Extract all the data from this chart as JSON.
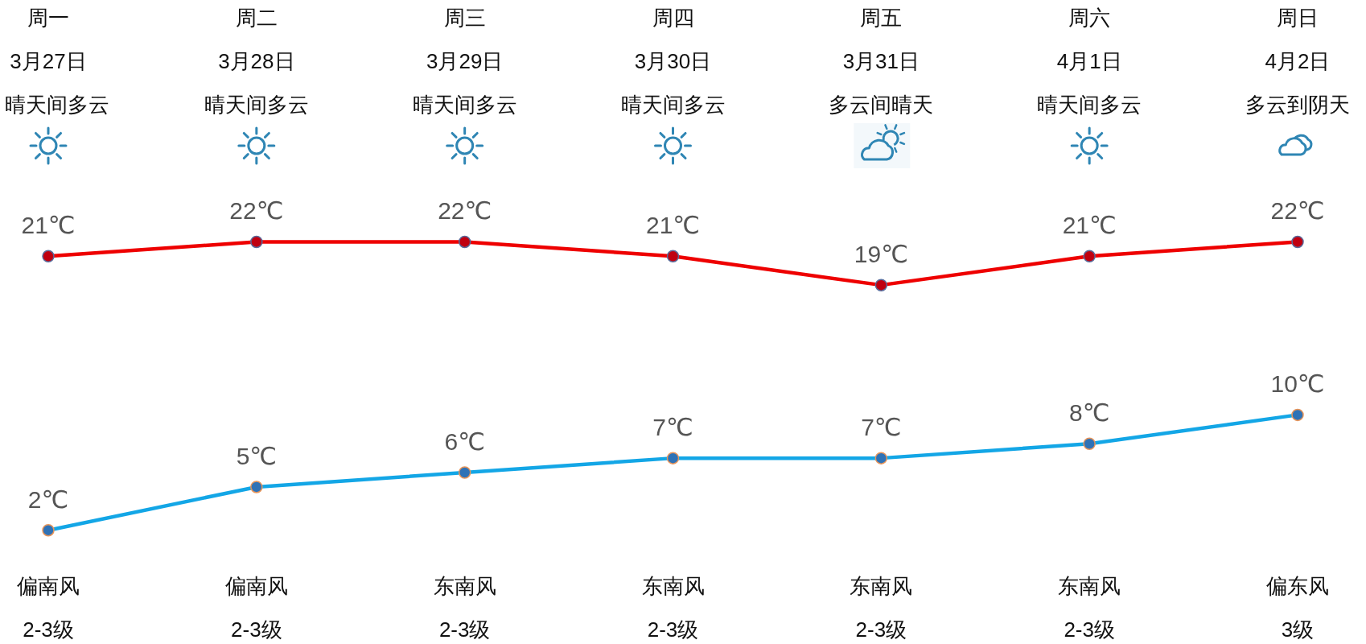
{
  "chart_data": {
    "type": "line",
    "categories": [
      "周一",
      "周二",
      "周三",
      "周四",
      "周五",
      "周六",
      "周日"
    ],
    "series": [
      {
        "color": "#ee0000",
        "values": [
          21,
          22,
          22,
          21,
          19,
          21,
          22
        ],
        "value_labels": [
          "21℃",
          "22℃",
          "22℃",
          "21℃",
          "19℃",
          "21℃",
          "22℃"
        ]
      },
      {
        "color": "#13a6e6",
        "values": [
          2,
          5,
          6,
          7,
          7,
          8,
          10
        ],
        "value_labels": [
          "2℃",
          "5℃",
          "6℃",
          "7℃",
          "7℃",
          "8℃",
          "10℃"
        ]
      }
    ],
    "annotations": [
      "3月27日",
      "3月28日",
      "3月29日",
      "3月30日",
      "3月31日",
      "4月1日",
      "4月2日",
      "晴天间多云",
      "晴天间多云",
      "晴天间多云",
      "晴天间多云",
      "多云间晴天",
      "晴天间多云",
      "多云到阴天",
      "偏南风",
      "偏南风",
      "东南风",
      "东南风",
      "东南风",
      "东南风",
      "偏东风",
      "2-3级",
      "2-3级",
      "2-3级",
      "2-3级",
      "2-3级",
      "2-3级",
      "3级"
    ],
    "tick_labels": "x",
    "marker": "circle",
    "line_style": "solid"
  }
}
